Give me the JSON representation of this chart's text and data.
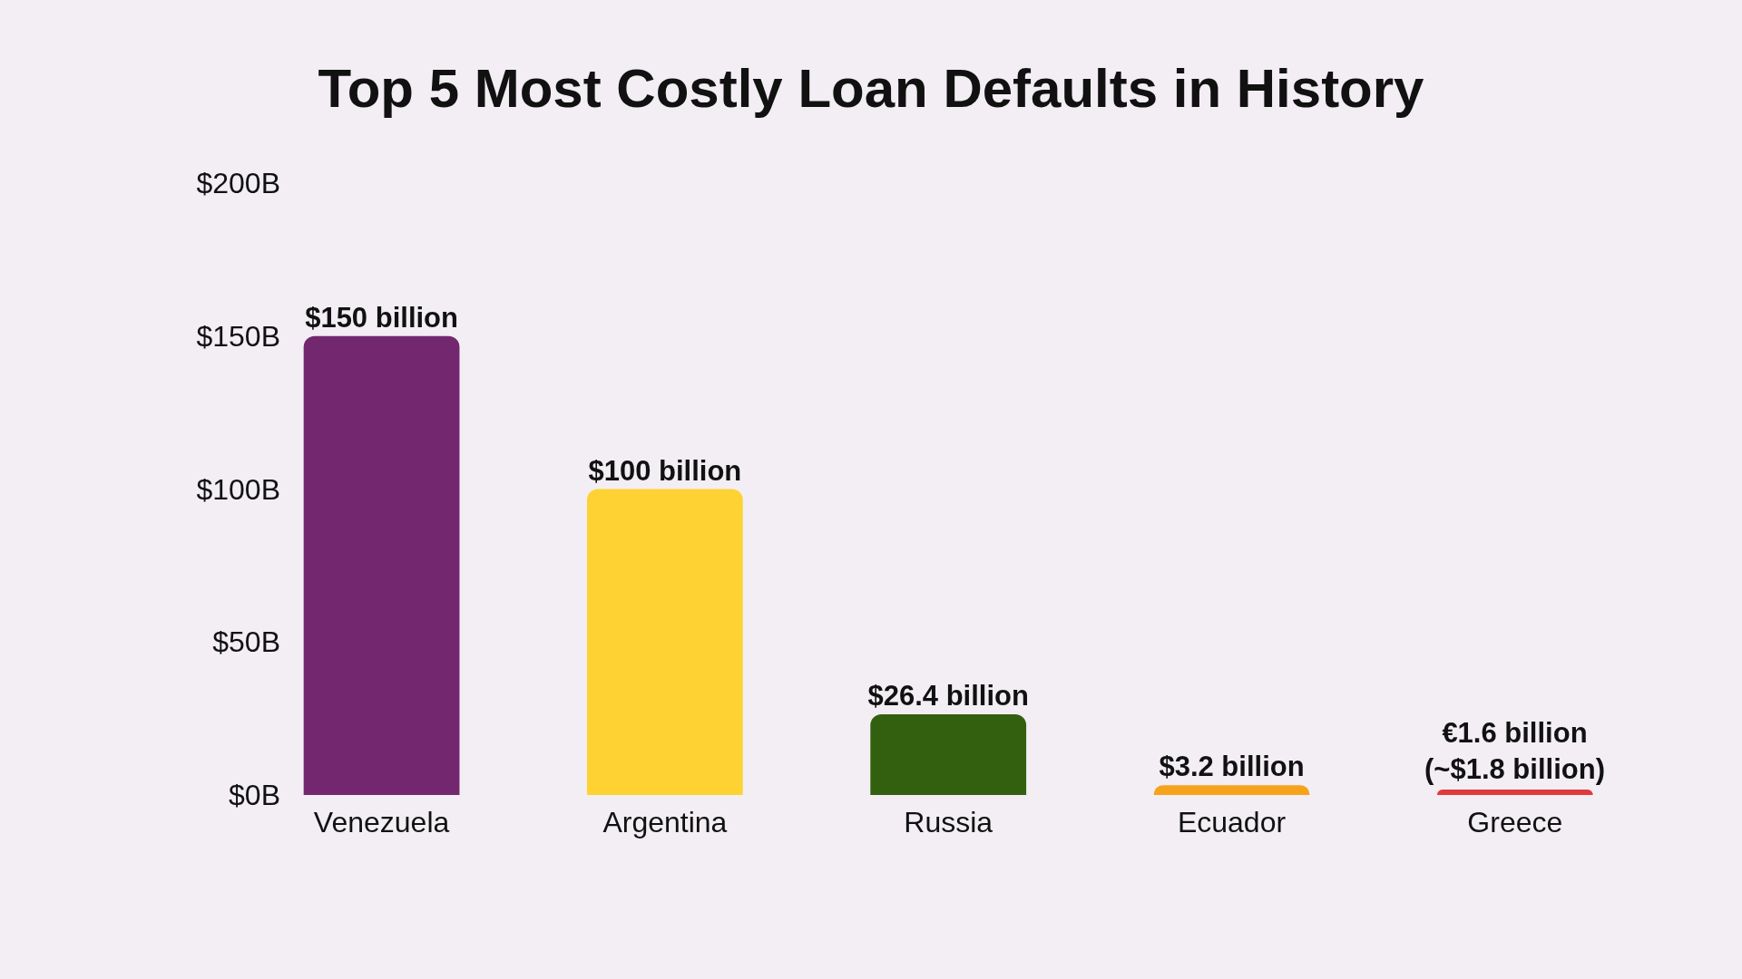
{
  "chart_data": {
    "type": "bar",
    "title": "Top 5 Most Costly Loan Defaults in History",
    "categories": [
      "Venezuela",
      "Argentina",
      "Russia",
      "Ecuador",
      "Greece"
    ],
    "values": [
      150,
      100,
      26.4,
      3.2,
      1.8
    ],
    "colors": [
      "#73276e",
      "#ffd233",
      "#33600f",
      "#f7a21b",
      "#e03a3a"
    ],
    "value_labels": [
      "$150 billion",
      "$100 billion",
      "$26.4 billion",
      "$3.2 billion",
      null
    ],
    "annotations": [
      {
        "text": "€1.6 billion\n(~$1.8 billion)",
        "x": "Greece",
        "y": 1.8
      }
    ],
    "ylim": [
      0,
      200
    ],
    "yticks": [
      {
        "value": 0,
        "label": "$0B"
      },
      {
        "value": 50,
        "label": "$50B"
      },
      {
        "value": 100,
        "label": "$100B"
      },
      {
        "value": 150,
        "label": "$150B"
      },
      {
        "value": 200,
        "label": "$200B"
      }
    ]
  }
}
